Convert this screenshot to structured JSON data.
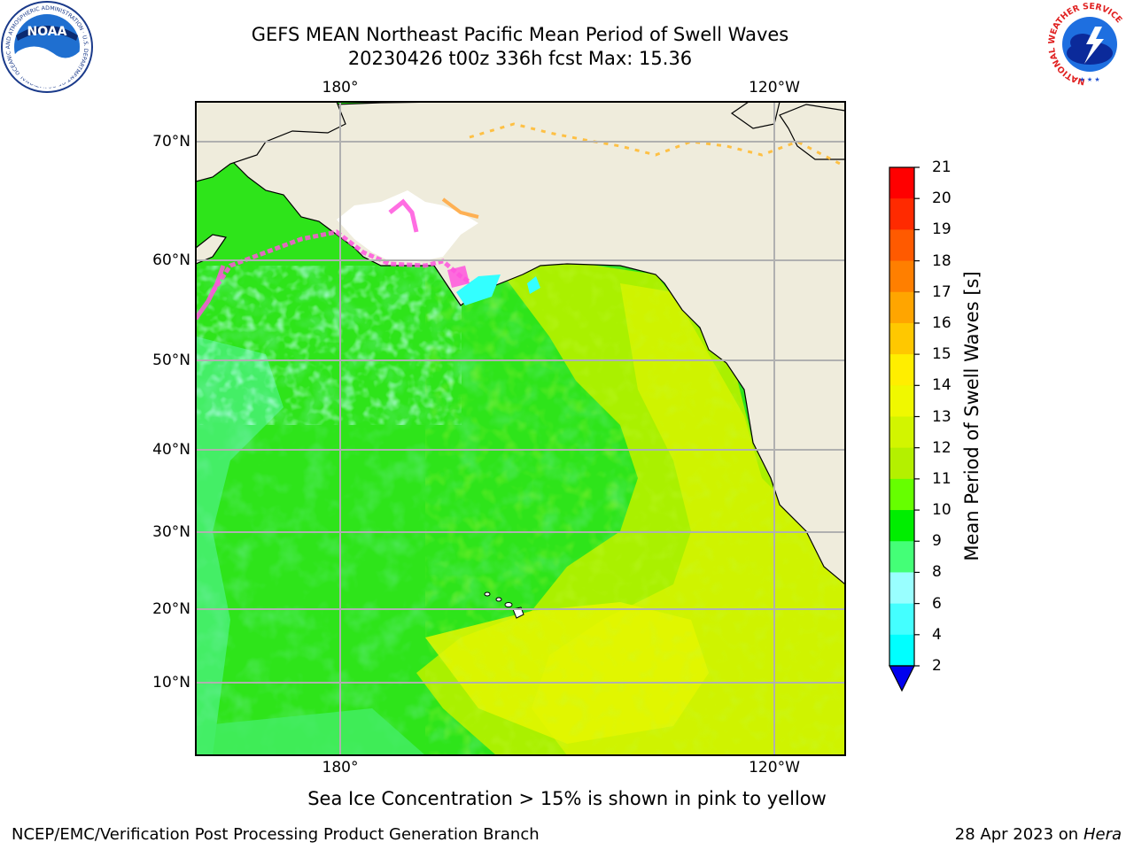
{
  "title_line1": "GEFS MEAN Northeast Pacific Mean Period of Swell Waves",
  "title_line2": "20230426 t00z 336h fcst   Max: 15.36",
  "top_lon_labels": [
    "180°",
    "120°W"
  ],
  "bottom_lon_labels": [
    "180°",
    "120°W"
  ],
  "lat_labels": [
    "70°N",
    "60°N",
    "50°N",
    "40°N",
    "30°N",
    "20°N",
    "10°N"
  ],
  "colorbar": {
    "title": "Mean Period of Swell Waves [s]",
    "ticks": [
      "21",
      "20",
      "19",
      "18",
      "17",
      "16",
      "15",
      "14",
      "13",
      "12",
      "11",
      "10",
      "9",
      "8",
      "6",
      "4",
      "2"
    ],
    "colors": [
      "#ff0000",
      "#ff2a00",
      "#ff5a00",
      "#ff7f00",
      "#ffa500",
      "#ffc800",
      "#ffee00",
      "#f0f800",
      "#d2f500",
      "#b4f000",
      "#66ff00",
      "#00ee00",
      "#44ff77",
      "#99ffff",
      "#44ffff",
      "#00ffff",
      "#00aaff",
      "#0044ff"
    ],
    "extend_color": "#0000ee"
  },
  "caption": "Sea Ice Concentration > 15% is shown in pink to yellow",
  "footer_left": "NCEP/EMC/Verification Post Processing Product Generation Branch",
  "footer_right_date": "28 Apr 2023 on",
  "footer_right_host": "Hera",
  "logos": {
    "left_text": "NOAA",
    "left_ring_text": "NATIONAL OCEANIC AND ATMOSPHERIC ADMINISTRATION · U.S. DEPARTMENT OF COMMERCE",
    "right_ring_text": "NATIONAL WEATHER SERVICE"
  },
  "colors": {
    "land": "#efecdc",
    "ice_white": "#ffffff",
    "ocean_base": "#33ee22",
    "grid": "#b0b0b0"
  }
}
